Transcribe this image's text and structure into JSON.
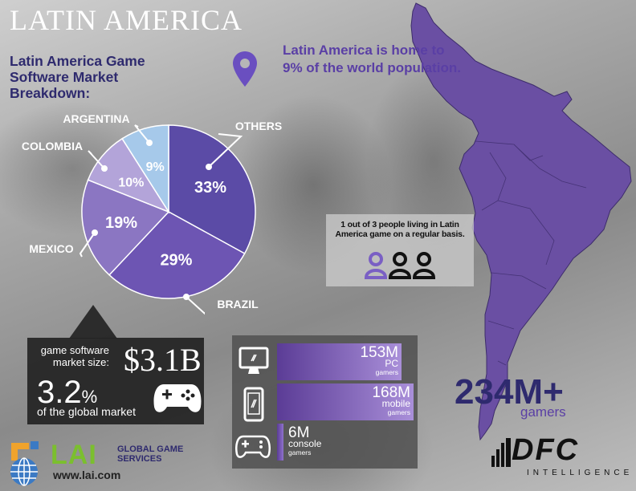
{
  "page": {
    "title": "LATIN AMERICA",
    "chart_title": "Latin America Game Software Market Breakdown:",
    "population_note": "Latin America is home to 9% of the world population."
  },
  "gamers_note": {
    "text": "1 out of 3 people living in Latin America game on a regular basis.",
    "highlighted_fraction": "1 of 3"
  },
  "market": {
    "label": "game software market size:",
    "value": "$3.1B",
    "share_value": "3.2",
    "share_symbol": "%",
    "share_label": "of the global market"
  },
  "platforms": [
    {
      "value": "153M",
      "label": "PC",
      "sub": "gamers",
      "icon": "monitor-icon",
      "amount": 153
    },
    {
      "value": "168M",
      "label": "mobile",
      "sub": "gamers",
      "icon": "phone-icon",
      "amount": 168
    },
    {
      "value": "6M",
      "label": "console",
      "sub": "gamers",
      "icon": "gamepad-icon",
      "amount": 6
    }
  ],
  "total": {
    "value": "234M+",
    "label": "gamers"
  },
  "logos": {
    "lai_name": "LAI",
    "lai_services_line1": "GLOBAL GAME",
    "lai_services_line2": "SERVICES",
    "lai_url": "www.lai.com",
    "dfc_name": "DFC",
    "dfc_sub": "INTELLIGENCE"
  },
  "colors": {
    "others": "#5b4ba6",
    "brazil": "#6d55b3",
    "mexico": "#8b76c2",
    "colombia": "#b3a4d9",
    "argentina": "#a6c9ea",
    "map": "#6a4fa3",
    "title": "#2e2a6e"
  },
  "chart_data": {
    "type": "pie",
    "title": "Latin America Game Software Market Breakdown:",
    "categories": [
      "OTHERS",
      "BRAZIL",
      "MEXICO",
      "COLOMBIA",
      "ARGENTINA"
    ],
    "values": [
      33,
      29,
      19,
      10,
      9
    ],
    "labels": [
      "33%",
      "29%",
      "19%",
      "10%",
      "9%"
    ]
  }
}
